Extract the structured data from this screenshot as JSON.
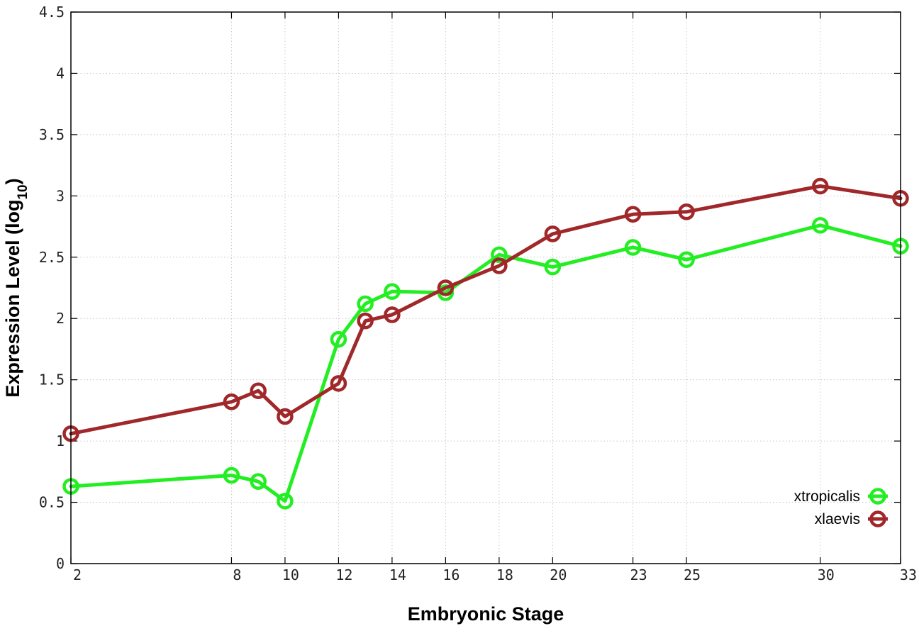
{
  "chart_data": {
    "type": "line",
    "xlabel": "Embryonic Stage",
    "ylabel_main": "Expression Level (log",
    "ylabel_sub": "10",
    "ylabel_close": ")",
    "xlim": [
      2,
      33
    ],
    "ylim": [
      0,
      4.5
    ],
    "x_ticks": [
      2,
      8,
      10,
      12,
      14,
      16,
      18,
      20,
      23,
      25,
      30,
      33
    ],
    "y_ticks": [
      0,
      0.5,
      1,
      1.5,
      2,
      2.5,
      3,
      3.5,
      4,
      4.5
    ],
    "grid": true,
    "legend_position": "bottom-right",
    "x": [
      2,
      8,
      9,
      10,
      12,
      13,
      14,
      16,
      18,
      20,
      23,
      25,
      30,
      33
    ],
    "series": [
      {
        "name": "xtropicalis",
        "color": "#22ee22",
        "values": [
          0.63,
          0.72,
          0.67,
          0.51,
          1.83,
          2.12,
          2.22,
          2.21,
          2.52,
          2.42,
          2.58,
          2.48,
          2.76,
          2.59
        ]
      },
      {
        "name": "xlaevis",
        "color": "#a0282a",
        "values": [
          1.06,
          1.32,
          1.41,
          1.2,
          1.47,
          1.98,
          2.03,
          2.25,
          2.43,
          2.69,
          2.85,
          2.87,
          3.08,
          2.98
        ]
      }
    ]
  }
}
